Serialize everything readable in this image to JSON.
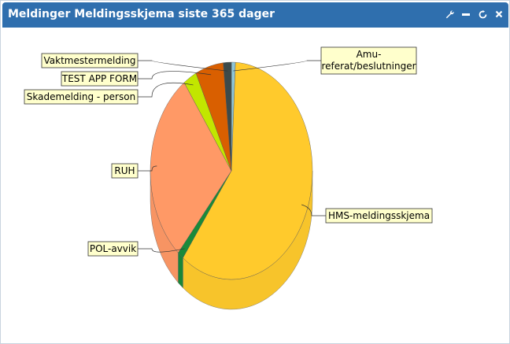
{
  "widget": {
    "title": "Meldinger Meldingsskjema siste 365 dager",
    "tools": [
      "wrench-icon",
      "minimize-icon",
      "refresh-icon",
      "close-icon"
    ]
  },
  "chart_data": {
    "type": "pie",
    "title": "",
    "labels": [
      "Amu-referat/beslutninger",
      "HMS-meldingsskjema",
      "POL-avvik",
      "RUH",
      "Skademelding - person",
      "TEST APP FORM",
      "Vaktmestermelding"
    ],
    "label_lines": [
      [
        "Amu-",
        "referat/beslutninger"
      ],
      [
        "HMS-meldingsskjema"
      ],
      [
        "POL-avvik"
      ],
      [
        "RUH"
      ],
      [
        "Skademelding - person"
      ],
      [
        "TEST APP FORM"
      ],
      [
        "Vaktmestermelding"
      ]
    ],
    "values": [
      0.8,
      59.4,
      1.2,
      28.7,
      2.7,
      5.6,
      1.6
    ],
    "colors": [
      "#8ec5d8",
      "#ffca2c",
      "#1a8a3a",
      "#ff9966",
      "#c2e600",
      "#d95f00",
      "#3d4a4a"
    ]
  }
}
